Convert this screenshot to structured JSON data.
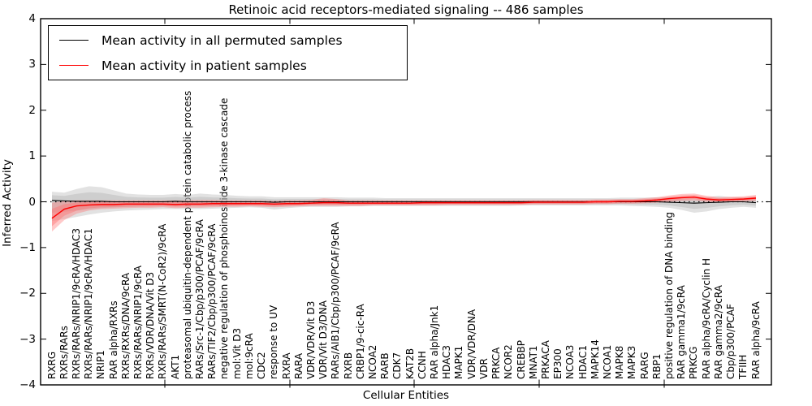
{
  "chart_data": {
    "type": "line",
    "title": "Retinoic acid receptors-mediated signaling -- 486 samples",
    "xlabel": "Cellular Entities",
    "ylabel": "Inferred Activity",
    "ylim": [
      -4,
      4
    ],
    "grid": false,
    "zero_line": "dotted",
    "legend_position": "upper left",
    "categories": [
      "RXRG",
      "RXRs/RARs",
      "RXRs/RARs/NRIP1/9cRA/HDAC3",
      "RXRs/RARs/NRIP1/9cRA/HDAC1",
      "NRIP1",
      "RAR alpha/RXRs",
      "RXRs/RXRs/DNA/9cRA",
      "RXRs/RARs/NRIP1/9cRA",
      "RXRs/VDR/DNA/Vit D3",
      "RXRs/RARs/SMRT(N-CoR2)/9cRA",
      "AKT1",
      "proteasomal ubiquitin-dependent protein catabolic process",
      "RARs/Src-1/Cbp/p300/PCAF/9cRA",
      "RARs/TIF2/Cbp/p300/PCAF/9cRA",
      "negative regulation of phosphoinositide 3-kinase cascade",
      "mol:Vit D3",
      "mol:9cRA",
      "CDC2",
      "response to UV",
      "RXRA",
      "RARA",
      "VDR/VDR/Vit D3",
      "VDR/Vit D3/DNA",
      "RARs/AIB1/Cbp/p300/PCAF/9cRA",
      "RXRB",
      "CRBP1/9-cic-RA",
      "NCOA2",
      "RARB",
      "CDK7",
      "KAT2B",
      "CCNH",
      "RAR alpha/Jnk1",
      "HDAC3",
      "MAPK1",
      "VDR/VDR/DNA",
      "VDR",
      "PRKCA",
      "NCOR2",
      "CREBBP",
      "MNAT1",
      "PRKACA",
      "EP300",
      "NCOA3",
      "HDAC1",
      "MAPK14",
      "NCOA1",
      "MAPK8",
      "MAPK3",
      "RARG",
      "RBP1",
      "positive regulation of DNA binding",
      "RAR gamma1/9cRA",
      "PRKCG",
      "RAR alpha/9cRA/Cyclin H",
      "RAR gamma2/9cRA",
      "Cbp/p300/PCAF",
      "TFIIH",
      "RAR alpha/9cRA"
    ],
    "series": [
      {
        "name": "Mean activity in all permuted samples",
        "color": "#000000",
        "band_color": "#b3b3b3",
        "values": [
          0.03,
          0.02,
          0.01,
          0.01,
          0.01,
          0,
          0,
          0,
          0,
          0,
          0.01,
          0,
          0,
          0,
          0,
          0,
          0,
          0,
          -0.01,
          0,
          0,
          0,
          0,
          0,
          0,
          0,
          0,
          0,
          0,
          0,
          0,
          0,
          0,
          0,
          0,
          0,
          0,
          0,
          0,
          0,
          0,
          0,
          0,
          0,
          0,
          0,
          0,
          0,
          0,
          0,
          -0.01,
          -0.02,
          -0.03,
          -0.02,
          -0.01,
          0,
          0,
          -0.02
        ],
        "band_upper": [
          0.22,
          0.2,
          0.28,
          0.34,
          0.32,
          0.25,
          0.18,
          0.16,
          0.15,
          0.15,
          0.17,
          0.15,
          0.18,
          0.16,
          0.15,
          0.13,
          0.12,
          0.12,
          0.1,
          0.1,
          0.1,
          0.1,
          0.1,
          0.1,
          0.09,
          0.09,
          0.09,
          0.08,
          0.08,
          0.08,
          0.08,
          0.08,
          0.08,
          0.08,
          0.08,
          0.08,
          0.08,
          0.08,
          0.08,
          0.08,
          0.08,
          0.08,
          0.08,
          0.08,
          0.08,
          0.08,
          0.09,
          0.09,
          0.09,
          0.1,
          0.1,
          0.09,
          0.08,
          0.1,
          0.13,
          0.1,
          0.09,
          0.1
        ],
        "band_lower": [
          -0.42,
          -0.38,
          -0.33,
          -0.28,
          -0.24,
          -0.21,
          -0.19,
          -0.18,
          -0.17,
          -0.16,
          -0.16,
          -0.16,
          -0.16,
          -0.15,
          -0.14,
          -0.13,
          -0.12,
          -0.13,
          -0.17,
          -0.14,
          -0.12,
          -0.11,
          -0.11,
          -0.11,
          -0.1,
          -0.1,
          -0.09,
          -0.09,
          -0.09,
          -0.09,
          -0.09,
          -0.09,
          -0.09,
          -0.09,
          -0.09,
          -0.09,
          -0.09,
          -0.09,
          -0.08,
          -0.08,
          -0.08,
          -0.08,
          -0.08,
          -0.08,
          -0.08,
          -0.08,
          -0.08,
          -0.09,
          -0.1,
          -0.11,
          -0.13,
          -0.18,
          -0.24,
          -0.21,
          -0.16,
          -0.13,
          -0.11,
          -0.13
        ]
      },
      {
        "name": "Mean activity in patient samples",
        "color": "#ff0000",
        "band_color": "#ff7070",
        "values": [
          -0.36,
          -0.16,
          -0.09,
          -0.07,
          -0.06,
          -0.06,
          -0.05,
          -0.05,
          -0.05,
          -0.05,
          -0.06,
          -0.05,
          -0.05,
          -0.04,
          -0.04,
          -0.04,
          -0.04,
          -0.04,
          -0.05,
          -0.04,
          -0.04,
          -0.03,
          -0.02,
          -0.02,
          -0.03,
          -0.03,
          -0.03,
          -0.03,
          -0.03,
          -0.03,
          -0.02,
          -0.02,
          -0.02,
          -0.02,
          -0.02,
          -0.02,
          -0.02,
          -0.02,
          -0.02,
          -0.01,
          -0.01,
          -0.01,
          -0.01,
          -0.01,
          0,
          0,
          0.01,
          0.01,
          0.02,
          0.04,
          0.07,
          0.09,
          0.1,
          0.06,
          0.04,
          0.05,
          0.06,
          0.08
        ],
        "band_upper": [
          -0.02,
          0.02,
          0.03,
          0.03,
          0.03,
          0.03,
          0.03,
          0.03,
          0.03,
          0.03,
          0.03,
          0.03,
          0.04,
          0.04,
          0.03,
          0.03,
          0.03,
          0.03,
          0.02,
          0.03,
          0.03,
          0.04,
          0.08,
          0.06,
          0.03,
          0.03,
          0.03,
          0.03,
          0.03,
          0.03,
          0.03,
          0.03,
          0.03,
          0.03,
          0.03,
          0.03,
          0.03,
          0.03,
          0.03,
          0.04,
          0.04,
          0.04,
          0.04,
          0.04,
          0.05,
          0.05,
          0.06,
          0.06,
          0.08,
          0.1,
          0.14,
          0.17,
          0.18,
          0.13,
          0.1,
          0.11,
          0.12,
          0.15
        ],
        "band_lower": [
          -0.65,
          -0.4,
          -0.26,
          -0.19,
          -0.16,
          -0.15,
          -0.14,
          -0.13,
          -0.13,
          -0.12,
          -0.14,
          -0.13,
          -0.13,
          -0.12,
          -0.11,
          -0.11,
          -0.1,
          -0.11,
          -0.12,
          -0.11,
          -0.1,
          -0.09,
          -0.09,
          -0.09,
          -0.09,
          -0.09,
          -0.08,
          -0.08,
          -0.08,
          -0.08,
          -0.08,
          -0.08,
          -0.07,
          -0.07,
          -0.07,
          -0.07,
          -0.07,
          -0.07,
          -0.07,
          -0.06,
          -0.06,
          -0.06,
          -0.06,
          -0.06,
          -0.05,
          -0.05,
          -0.04,
          -0.04,
          -0.03,
          -0.02,
          0,
          0.02,
          0.03,
          0,
          -0.01,
          0,
          0.01,
          0.02
        ]
      }
    ]
  }
}
